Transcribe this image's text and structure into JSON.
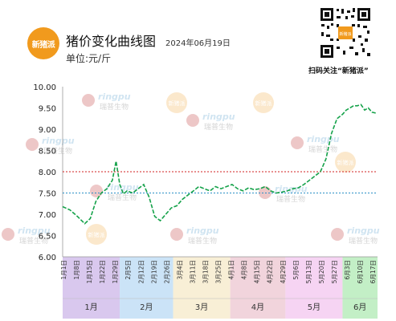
{
  "header": {
    "logo_text": "新猪派",
    "title": "猪价变化曲线图",
    "date": "2024年06月19日",
    "unit": "单位:元/斤",
    "qr_caption": "扫码关注“新猪派”",
    "qr_center_text": "新猪派"
  },
  "watermarks": {
    "brand": "ringpu",
    "brand_cn": "瑞普生物",
    "badge": "新猪派"
  },
  "colors": {
    "line": "#15a24a",
    "ref_high": "#d02020",
    "ref_low": "#2a8fc6",
    "logo": "#f19a1d"
  },
  "chart_data": {
    "type": "line",
    "title": "猪价变化曲线图",
    "ylabel": "元/斤",
    "ylim": [
      6.0,
      10.0
    ],
    "y_ticks": [
      "6.00",
      "6.50",
      "7.00",
      "7.50",
      "8.00",
      "8.50",
      "9.00",
      "9.50",
      "10.00"
    ],
    "x_ticks": [
      "1月1日",
      "1月8日",
      "1月15日",
      "1月22日",
      "1月29日",
      "2月5日",
      "2月12日",
      "2月19日",
      "2月26日",
      "3月4日",
      "3月11日",
      "3月18日",
      "3月25日",
      "4月1日",
      "4月8日",
      "4月15日",
      "4月22日",
      "4月29日",
      "5月6日",
      "5月13日",
      "5月20日",
      "5月27日",
      "6月3日",
      "6月10日",
      "6月17日"
    ],
    "months": [
      {
        "label": "1月",
        "start": 0,
        "end": 31,
        "color": "#d9c8ee"
      },
      {
        "label": "2月",
        "start": 31,
        "end": 60,
        "color": "#cbe3f7"
      },
      {
        "label": "3月",
        "start": 60,
        "end": 91,
        "color": "#f8efd6"
      },
      {
        "label": "4月",
        "start": 91,
        "end": 121,
        "color": "#f1d4dc"
      },
      {
        "label": "5月",
        "start": 121,
        "end": 152,
        "color": "#f6d4f3"
      },
      {
        "label": "6月",
        "start": 152,
        "end": 171,
        "color": "#c3efc6"
      }
    ],
    "reference_lines": [
      {
        "value": 8.0,
        "color": "#d02020"
      },
      {
        "value": 7.5,
        "color": "#2a8fc6"
      }
    ],
    "series": [
      {
        "x": [
          0,
          4,
          8,
          12,
          15,
          18,
          21,
          24,
          27,
          29,
          31,
          33,
          35,
          38,
          41,
          44,
          47,
          50,
          53,
          56,
          59,
          62,
          65,
          68,
          71,
          74,
          77,
          80,
          83,
          86,
          89,
          92,
          95,
          98,
          101,
          104,
          107,
          110,
          113,
          116,
          119,
          122,
          125,
          128,
          131,
          134,
          137,
          140,
          143,
          146,
          149,
          152,
          154,
          156,
          158,
          160,
          162,
          164,
          166,
          168,
          170
        ],
        "y": [
          7.18,
          7.1,
          6.95,
          6.78,
          6.9,
          7.3,
          7.5,
          7.6,
          7.8,
          8.25,
          7.7,
          7.48,
          7.55,
          7.5,
          7.6,
          7.7,
          7.4,
          6.95,
          6.85,
          7.0,
          7.15,
          7.2,
          7.35,
          7.45,
          7.55,
          7.65,
          7.6,
          7.55,
          7.65,
          7.6,
          7.65,
          7.7,
          7.6,
          7.55,
          7.62,
          7.58,
          7.6,
          7.65,
          7.55,
          7.5,
          7.52,
          7.55,
          7.6,
          7.62,
          7.7,
          7.8,
          7.9,
          8.0,
          8.3,
          8.9,
          9.25,
          9.35,
          9.45,
          9.5,
          9.55,
          9.55,
          9.58,
          9.45,
          9.5,
          9.4,
          9.38
        ]
      }
    ]
  }
}
